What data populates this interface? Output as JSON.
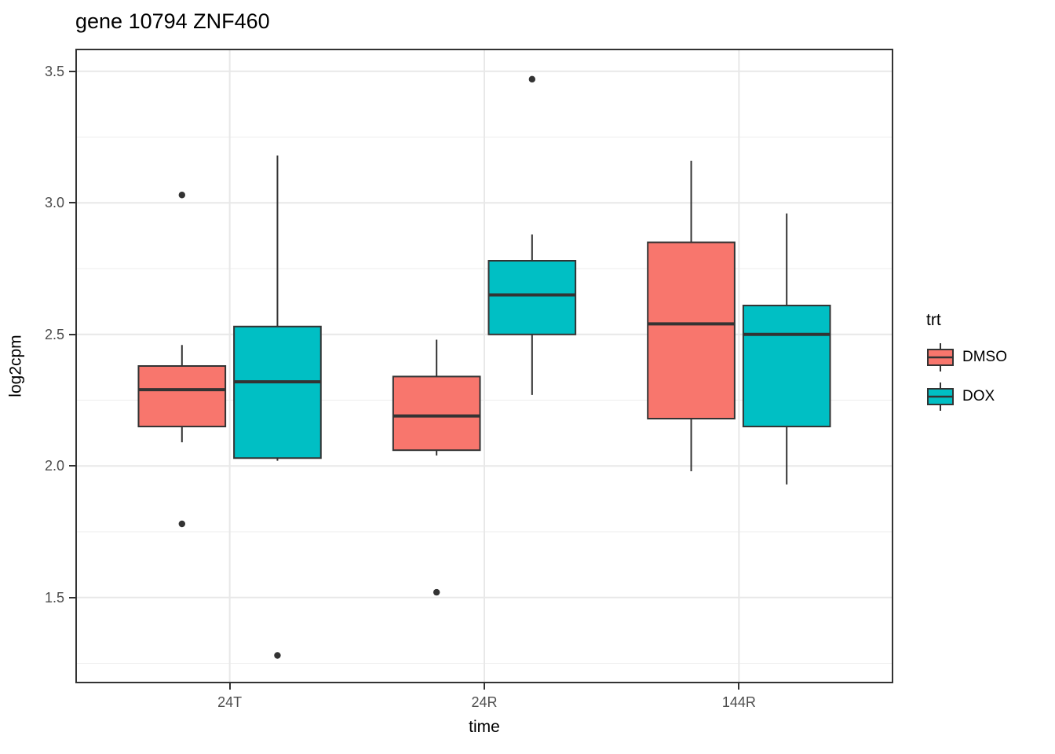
{
  "title": "gene 10794 ZNF460",
  "axes": {
    "x": {
      "label": "time",
      "categories": [
        "24T",
        "24R",
        "144R"
      ]
    },
    "y": {
      "label": "log2cpm",
      "range": [
        1.18,
        3.58
      ],
      "ticks": [
        {
          "value": 3.5,
          "label": "3.5"
        },
        {
          "value": 3.0,
          "label": "3.0"
        },
        {
          "value": 2.5,
          "label": "2.5"
        },
        {
          "value": 2.0,
          "label": "2.0"
        },
        {
          "value": 1.5,
          "label": "1.5"
        }
      ],
      "minor": [
        3.25,
        2.75,
        2.25,
        1.75,
        1.25
      ]
    }
  },
  "legend": {
    "title": "trt",
    "items": [
      {
        "label": "DMSO",
        "color": "#F8766D"
      },
      {
        "label": "DOX",
        "color": "#00BFC4"
      }
    ]
  },
  "chart_data": {
    "type": "boxplot",
    "title": "gene 10794 ZNF460",
    "xlabel": "time",
    "ylabel": "log2cpm",
    "ylim": [
      1.18,
      3.58
    ],
    "grid": "on",
    "legend_position": "right",
    "categories": [
      "24T",
      "24R",
      "144R"
    ],
    "series": [
      {
        "name": "DMSO",
        "color": "#F8766D",
        "boxes": [
          {
            "category": "24T",
            "whisker_low": 2.09,
            "q1": 2.15,
            "median": 2.29,
            "q3": 2.38,
            "whisker_high": 2.46,
            "outliers": [
              3.03,
              1.78
            ]
          },
          {
            "category": "24R",
            "whisker_low": 2.04,
            "q1": 2.06,
            "median": 2.19,
            "q3": 2.34,
            "whisker_high": 2.48,
            "outliers": [
              1.52
            ]
          },
          {
            "category": "144R",
            "whisker_low": 1.98,
            "q1": 2.18,
            "median": 2.54,
            "q3": 2.85,
            "whisker_high": 3.16,
            "outliers": []
          }
        ]
      },
      {
        "name": "DOX",
        "color": "#00BFC4",
        "boxes": [
          {
            "category": "24T",
            "whisker_low": 2.02,
            "q1": 2.03,
            "median": 2.32,
            "q3": 2.53,
            "whisker_high": 3.18,
            "outliers": [
              1.28
            ]
          },
          {
            "category": "24R",
            "whisker_low": 2.27,
            "q1": 2.5,
            "median": 2.65,
            "q3": 2.78,
            "whisker_high": 2.88,
            "outliers": [
              3.47
            ]
          },
          {
            "category": "144R",
            "whisker_low": 1.93,
            "q1": 2.15,
            "median": 2.5,
            "q3": 2.61,
            "whisker_high": 2.96,
            "outliers": []
          }
        ]
      }
    ]
  },
  "style": {
    "box_outline": "#333333",
    "median_color": "#333333",
    "outlier_color": "#333333",
    "grid_major": "#E8E8E8",
    "grid_minor": "#EDEDED",
    "panel_border": "#333333",
    "tick_color": "#333333",
    "tick_label_color": "#4D4D4D",
    "background": "#FFFFFF"
  }
}
